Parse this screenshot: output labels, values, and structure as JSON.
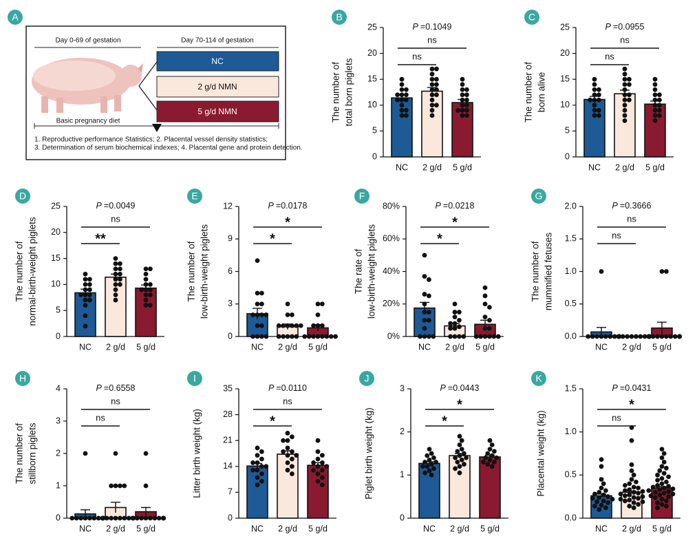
{
  "diagram": {
    "label": "A",
    "left_header": "Day 0-69 of gestation",
    "right_header": "Day 70-114 of gestation",
    "groups": [
      "NC",
      "2 g/d NMN",
      "5 g/d NMN"
    ],
    "diet": "Basic pregnancy diet",
    "notes": [
      "1. Reproductive performance Statistics; 2. Placental vessel density statistics;",
      "3. Determination of serum biochemical indexes; 4. Placental gene and protein detection."
    ]
  },
  "chart_data": [
    {
      "type": "bar",
      "panel": "B",
      "ylabel": [
        "The number of",
        "total born piglets"
      ],
      "p_label": "P",
      "p_value": "=0.1049",
      "categories": [
        "NC",
        "2 g/d",
        "5 g/d"
      ],
      "colors": [
        "#1d5a96",
        "#fbe8dc",
        "#8a1a2f"
      ],
      "values": [
        11.4,
        12.7,
        10.5
      ],
      "errors": [
        0.6,
        0.7,
        0.6
      ],
      "points": [
        [
          15,
          14,
          13,
          13,
          12,
          12,
          12,
          11,
          11,
          11,
          10,
          9,
          9,
          8,
          8
        ],
        [
          17,
          17,
          16,
          15,
          15,
          14,
          14,
          13,
          13,
          12,
          12,
          11,
          10,
          10,
          9,
          8
        ],
        [
          15,
          14,
          13,
          13,
          12,
          12,
          11,
          11,
          10,
          10,
          9,
          9,
          9,
          8,
          8
        ]
      ],
      "ylim": [
        0,
        25
      ],
      "yticks": [
        0,
        5,
        10,
        15,
        20,
        25
      ],
      "comparisons": [
        {
          "from": "NC",
          "to": "2 g/d",
          "label": "ns"
        },
        {
          "from": "NC",
          "to": "5 g/d",
          "label": "ns"
        }
      ]
    },
    {
      "type": "bar",
      "panel": "C",
      "ylabel": [
        "The number of",
        "born alive"
      ],
      "p_label": "P",
      "p_value": "=0.0955",
      "categories": [
        "NC",
        "2 g/d",
        "5 g/d"
      ],
      "colors": [
        "#1d5a96",
        "#fbe8dc",
        "#8a1a2f"
      ],
      "values": [
        11.1,
        12.2,
        10.2
      ],
      "errors": [
        0.6,
        0.7,
        0.6
      ],
      "points": [
        [
          15,
          14,
          13,
          13,
          12,
          12,
          11,
          11,
          11,
          10,
          9,
          9,
          8,
          8
        ],
        [
          17,
          16,
          15,
          15,
          14,
          14,
          13,
          12,
          12,
          11,
          11,
          10,
          9,
          8,
          7
        ],
        [
          15,
          14,
          13,
          12,
          12,
          11,
          11,
          10,
          10,
          9,
          9,
          8,
          8,
          7
        ]
      ],
      "ylim": [
        0,
        25
      ],
      "yticks": [
        0,
        5,
        10,
        15,
        20,
        25
      ],
      "comparisons": [
        {
          "from": "NC",
          "to": "2 g/d",
          "label": "ns"
        },
        {
          "from": "NC",
          "to": "5 g/d",
          "label": "ns"
        }
      ]
    },
    {
      "type": "bar",
      "panel": "D",
      "ylabel": [
        "The number of",
        "normal-birth-weight piglets"
      ],
      "p_label": "P",
      "p_value": "=0.0049",
      "categories": [
        "NC",
        "2 g/d",
        "5 g/d"
      ],
      "colors": [
        "#1d5a96",
        "#fbe8dc",
        "#8a1a2f"
      ],
      "values": [
        8.4,
        11.4,
        9.3
      ],
      "errors": [
        0.7,
        0.6,
        0.6
      ],
      "points": [
        [
          12,
          11,
          11,
          10,
          10,
          9,
          9,
          8,
          8,
          8,
          7,
          7,
          6,
          4,
          2
        ],
        [
          15,
          14,
          14,
          13,
          13,
          12,
          12,
          11,
          11,
          10,
          10,
          9,
          8,
          7
        ],
        [
          13,
          13,
          12,
          11,
          10,
          10,
          9,
          9,
          9,
          8,
          8,
          7,
          6,
          6
        ]
      ],
      "ylim": [
        0,
        25
      ],
      "yticks": [
        0,
        5,
        10,
        15,
        20,
        25
      ],
      "comparisons": [
        {
          "from": "NC",
          "to": "2 g/d",
          "label": "**"
        },
        {
          "from": "NC",
          "to": "5 g/d",
          "label": "ns"
        }
      ]
    },
    {
      "type": "bar",
      "panel": "E",
      "ylabel": [
        "The number of",
        "low-birth-weight piglets"
      ],
      "p_label": "P",
      "p_value": "=0.0178",
      "categories": [
        "NC",
        "2 g/d",
        "5 g/d"
      ],
      "colors": [
        "#1d5a96",
        "#fbe8dc",
        "#8a1a2f"
      ],
      "values": [
        2.1,
        0.9,
        0.8
      ],
      "errors": [
        0.5,
        0.25,
        0.3
      ],
      "points": [
        [
          7,
          4,
          4,
          3,
          3,
          2,
          2,
          2,
          2,
          1,
          1,
          0,
          0,
          0,
          0
        ],
        [
          3,
          2,
          2,
          1,
          1,
          1,
          1,
          1,
          1,
          0,
          0,
          0,
          0,
          0
        ],
        [
          3,
          3,
          2,
          1,
          1,
          1,
          0,
          0,
          0,
          0,
          0,
          0,
          0,
          0
        ]
      ],
      "ylim": [
        0,
        12
      ],
      "yticks": [
        0,
        3,
        6,
        9,
        12
      ],
      "comparisons": [
        {
          "from": "NC",
          "to": "2 g/d",
          "label": "*"
        },
        {
          "from": "NC",
          "to": "5 g/d",
          "label": "*"
        }
      ]
    },
    {
      "type": "bar",
      "panel": "F",
      "ylabel": [
        "The rate of",
        "low-birth-weight piglets"
      ],
      "p_label": "P",
      "p_value": "=0.0218",
      "categories": [
        "NC",
        "2 g/d",
        "5 g/d"
      ],
      "colors": [
        "#1d5a96",
        "#fbe8dc",
        "#8a1a2f"
      ],
      "values": [
        17.5,
        6.5,
        7.5
      ],
      "errors": [
        3.5,
        1.5,
        2.5
      ],
      "points": [
        [
          50,
          37,
          35,
          26,
          25,
          20,
          15,
          15,
          10,
          10,
          5,
          0,
          0,
          0,
          0
        ],
        [
          20,
          15,
          15,
          12,
          10,
          8,
          8,
          6,
          5,
          5,
          0,
          0,
          0,
          0
        ],
        [
          30,
          25,
          20,
          18,
          12,
          10,
          5,
          5,
          0,
          0,
          0,
          0,
          0,
          0
        ]
      ],
      "ylim": [
        0,
        80
      ],
      "yticks": [
        {
          "value": 0,
          "label": "0%"
        },
        {
          "value": 20,
          "label": "20%"
        },
        {
          "value": 40,
          "label": "40%"
        },
        {
          "value": 60,
          "label": "60%"
        },
        {
          "value": 80,
          "label": "80%"
        }
      ],
      "comparisons": [
        {
          "from": "NC",
          "to": "2 g/d",
          "label": "*"
        },
        {
          "from": "NC",
          "to": "5 g/d",
          "label": "*"
        }
      ]
    },
    {
      "type": "bar",
      "panel": "G",
      "ylabel": [
        "The number of",
        "mummified fetuses"
      ],
      "p_label": "P",
      "p_value": "=0.3666",
      "categories": [
        "NC",
        "2 g/d",
        "5 g/d"
      ],
      "colors": [
        "#1d5a96",
        "#fbe8dc",
        "#8a1a2f"
      ],
      "values": [
        0.07,
        0,
        0.13
      ],
      "errors": [
        0.07,
        0,
        0.09
      ],
      "points": [
        [
          1,
          0,
          0,
          0,
          0,
          0,
          0,
          0,
          0,
          0,
          0,
          0,
          0,
          0
        ],
        [
          0,
          0,
          0,
          0,
          0,
          0,
          0,
          0,
          0,
          0,
          0,
          0,
          0,
          0,
          0
        ],
        [
          1,
          1,
          0,
          0,
          0,
          0,
          0,
          0,
          0,
          0,
          0,
          0,
          0,
          0,
          0
        ]
      ],
      "ylim": [
        0,
        2
      ],
      "yticks": [
        {
          "value": 0,
          "label": "0.0"
        },
        0.5,
        {
          "value": 1,
          "label": "1.0"
        },
        1.5,
        {
          "value": 2,
          "label": "2.0"
        }
      ],
      "comparisons": [
        {
          "from": "NC",
          "to": "2 g/d",
          "label": "ns"
        },
        {
          "from": "NC",
          "to": "5 g/d",
          "label": "ns"
        }
      ]
    },
    {
      "type": "bar",
      "panel": "H",
      "ylabel": [
        "The number of",
        "stillborn piglets"
      ],
      "p_label": "P",
      "p_value": "=0.6558",
      "categories": [
        "NC",
        "2 g/d",
        "5 g/d"
      ],
      "colors": [
        "#1d5a96",
        "#fbe8dc",
        "#8a1a2f"
      ],
      "values": [
        0.13,
        0.33,
        0.2
      ],
      "errors": [
        0.13,
        0.16,
        0.13
      ],
      "points": [
        [
          2,
          0,
          0,
          0,
          0,
          0,
          0,
          0,
          0,
          0,
          0,
          0,
          0,
          0,
          0
        ],
        [
          2,
          1,
          1,
          1,
          1,
          0,
          0,
          0,
          0,
          0,
          0,
          0,
          0,
          0,
          0
        ],
        [
          2,
          1,
          0,
          0,
          0,
          0,
          0,
          0,
          0,
          0,
          0,
          0,
          0,
          0,
          0
        ]
      ],
      "ylim": [
        0,
        4
      ],
      "yticks": [
        0,
        1,
        2,
        3,
        4
      ],
      "comparisons": [
        {
          "from": "NC",
          "to": "2 g/d",
          "label": "ns"
        },
        {
          "from": "NC",
          "to": "5 g/d",
          "label": "ns"
        }
      ]
    },
    {
      "type": "bar",
      "panel": "I",
      "ylabel": [
        "Litter birth weight (kg)"
      ],
      "p_label": "P",
      "p_value": "=0.0110",
      "categories": [
        "NC",
        "2 g/d",
        "5 g/d"
      ],
      "colors": [
        "#1d5a96",
        "#fbe8dc",
        "#8a1a2f"
      ],
      "values": [
        14.1,
        17.3,
        14.3
      ],
      "errors": [
        0.7,
        0.9,
        0.7
      ],
      "points": [
        [
          19,
          18,
          17,
          16,
          15,
          15,
          14,
          14,
          13,
          13,
          12,
          11,
          10,
          9
        ],
        [
          23,
          22,
          21,
          21,
          19,
          18,
          18,
          17,
          17,
          16,
          15,
          14,
          13,
          12
        ],
        [
          21,
          18,
          17,
          16,
          15,
          15,
          14,
          14,
          13,
          13,
          12,
          11,
          10,
          9
        ]
      ],
      "ylim": [
        0,
        35
      ],
      "yticks": [
        0,
        7,
        14,
        21,
        28,
        35
      ],
      "comparisons": [
        {
          "from": "NC",
          "to": "2 g/d",
          "label": "*"
        },
        {
          "from": "NC",
          "to": "5 g/d",
          "label": "ns"
        }
      ]
    },
    {
      "type": "bar",
      "panel": "J",
      "ylabel": [
        "Piglet birth weight (kg)"
      ],
      "p_label": "P",
      "p_value": "=0.0443",
      "categories": [
        "NC",
        "2 g/d",
        "5 g/d"
      ],
      "colors": [
        "#1d5a96",
        "#fbe8dc",
        "#8a1a2f"
      ],
      "values": [
        1.27,
        1.45,
        1.42
      ],
      "errors": [
        0.04,
        0.05,
        0.04
      ],
      "points": [
        [
          1.6,
          1.5,
          1.45,
          1.4,
          1.35,
          1.3,
          1.3,
          1.25,
          1.2,
          1.2,
          1.15,
          1.1,
          1.05,
          1.0
        ],
        [
          1.9,
          1.8,
          1.7,
          1.6,
          1.55,
          1.5,
          1.45,
          1.4,
          1.4,
          1.35,
          1.3,
          1.25,
          1.2,
          1.15,
          1.05
        ],
        [
          1.8,
          1.7,
          1.6,
          1.55,
          1.5,
          1.45,
          1.4,
          1.4,
          1.35,
          1.3,
          1.3,
          1.25,
          1.2
        ]
      ],
      "ylim": [
        0,
        3
      ],
      "yticks": [
        0,
        1,
        2,
        3
      ],
      "comparisons": [
        {
          "from": "NC",
          "to": "2 g/d",
          "label": "*"
        },
        {
          "from": "NC",
          "to": "5 g/d",
          "label": "*"
        }
      ]
    },
    {
      "type": "bar",
      "panel": "K",
      "ylabel": [
        "Placental weight (kg)"
      ],
      "p_label": "P",
      "p_value": "=0.0431",
      "categories": [
        "NC",
        "2 g/d",
        "5 g/d"
      ],
      "colors": [
        "#1d5a96",
        "#fbe8dc",
        "#8a1a2f"
      ],
      "values": [
        0.26,
        0.3,
        0.35
      ],
      "errors": [
        0.02,
        0.015,
        0.015
      ],
      "points": [
        [
          0.68,
          0.6,
          0.45,
          0.4,
          0.35,
          0.32,
          0.3,
          0.28,
          0.27,
          0.25,
          0.24,
          0.23,
          0.22,
          0.2,
          0.19,
          0.18,
          0.15,
          0.14,
          0.12,
          0.1
        ],
        [
          1.05,
          0.9,
          0.62,
          0.55,
          0.5,
          0.45,
          0.42,
          0.4,
          0.38,
          0.36,
          0.35,
          0.33,
          0.32,
          0.31,
          0.3,
          0.29,
          0.28,
          0.27,
          0.26,
          0.25,
          0.24,
          0.23,
          0.22,
          0.21,
          0.2,
          0.19,
          0.18,
          0.16,
          0.14,
          0.12
        ],
        [
          0.8,
          0.75,
          0.7,
          0.65,
          0.6,
          0.58,
          0.55,
          0.52,
          0.5,
          0.48,
          0.46,
          0.44,
          0.42,
          0.4,
          0.38,
          0.37,
          0.36,
          0.35,
          0.34,
          0.33,
          0.32,
          0.31,
          0.3,
          0.29,
          0.28,
          0.27,
          0.26,
          0.25,
          0.24,
          0.22,
          0.2,
          0.18,
          0.16,
          0.14,
          0.12
        ]
      ],
      "ylim": [
        0,
        1.5
      ],
      "yticks": [
        {
          "value": 0,
          "label": "0.0"
        },
        0.5,
        {
          "value": 1,
          "label": "1.0"
        },
        1.5
      ],
      "comparisons": [
        {
          "from": "NC",
          "to": "2 g/d",
          "label": "ns"
        },
        {
          "from": "NC",
          "to": "5 g/d",
          "label": "*"
        }
      ]
    }
  ]
}
